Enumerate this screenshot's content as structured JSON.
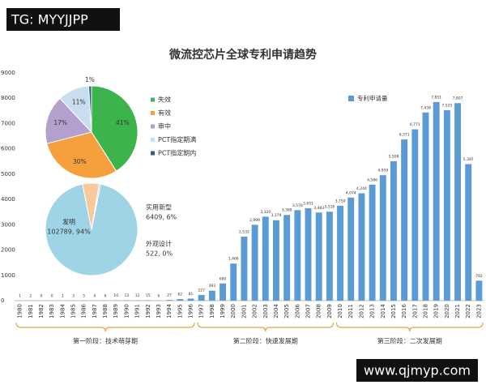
{
  "watermark_top": "TG: MYYJJPP",
  "watermark_bottom": "www.qjmyp.com",
  "chart_data": [
    {
      "type": "bar",
      "title": "微流控芯片全球专利申请趋势",
      "categories": [
        "1980",
        "1981",
        "1982",
        "1983",
        "1984",
        "1985",
        "1986",
        "1987",
        "1988",
        "1989",
        "1990",
        "1991",
        "1992",
        "1993",
        "1994",
        "1995",
        "1996",
        "1997",
        "1998",
        "1999",
        "2000",
        "2001",
        "2002",
        "2003",
        "2004",
        "2005",
        "2006",
        "2007",
        "2008",
        "2009",
        "2010",
        "2011",
        "2012",
        "2013",
        "2014",
        "2015",
        "2016",
        "2017",
        "2018",
        "2019",
        "2020",
        "2021",
        "2022",
        "2023"
      ],
      "series": [
        {
          "name": "专利申请量",
          "color": "#5b9bd5",
          "values": [
            1,
            2,
            0,
            0,
            1,
            3,
            5,
            4,
            6,
            10,
            13,
            12,
            15,
            6,
            27,
            62,
            81,
            227,
            393,
            680,
            1466,
            2532,
            2999,
            3320,
            3179,
            3388,
            3578,
            3651,
            3483,
            3516,
            3750,
            4074,
            4244,
            4586,
            4959,
            5508,
            6371,
            6771,
            7438,
            7851,
            7525,
            7807,
            5397,
            792
          ],
          "value_labels": [
            "1",
            "2",
            "0",
            "0",
            "1",
            "3",
            "5",
            "4",
            "6",
            "10",
            "13",
            "12",
            "15",
            "6",
            "27",
            "62",
            "81",
            "227",
            "393",
            "680",
            "1,466",
            "2,532",
            "2,999",
            "3,320",
            "3,179",
            "3,388",
            "3,578",
            "3,651",
            "3,483",
            "3,516",
            "3,750",
            "4,074",
            "4,244",
            "4,586",
            "4,959",
            "5,508",
            "6,371",
            "6,771",
            "7,438",
            "7,851",
            "7,525",
            "7,807",
            "5,397",
            "792"
          ]
        }
      ],
      "ylim": [
        0,
        9000
      ],
      "yticks": [
        0,
        1000,
        2000,
        3000,
        4000,
        5000,
        6000,
        7000,
        8000,
        9000
      ],
      "grid": false,
      "legend": "top-right",
      "annotations": [
        "第一阶段：技术萌芽期",
        "第二阶段：快速发展期",
        "第三阶段：二次发展期"
      ]
    },
    {
      "type": "pie",
      "categories": [
        "失效",
        "有效",
        "审中",
        "PCT指定期满",
        "PCT指定期内"
      ],
      "values": [
        41,
        30,
        17,
        11,
        1
      ],
      "value_labels": [
        "41%",
        "30%",
        "17%",
        "11%",
        "1%"
      ],
      "colors": [
        "#3cb44b",
        "#f5a03c",
        "#b4a0cd",
        "#c9ddf0",
        "#2d5f8f"
      ],
      "legend": "right"
    },
    {
      "type": "pie",
      "categories": [
        "发明",
        "实用新型",
        "外观设计"
      ],
      "values": [
        102789,
        6409,
        522
      ],
      "value_labels": [
        "102789, 94%",
        "6409, 6%",
        "522, 0%"
      ],
      "colors": [
        "#9fd4e6",
        "#f7c99b",
        "#bbbbbb"
      ]
    }
  ]
}
